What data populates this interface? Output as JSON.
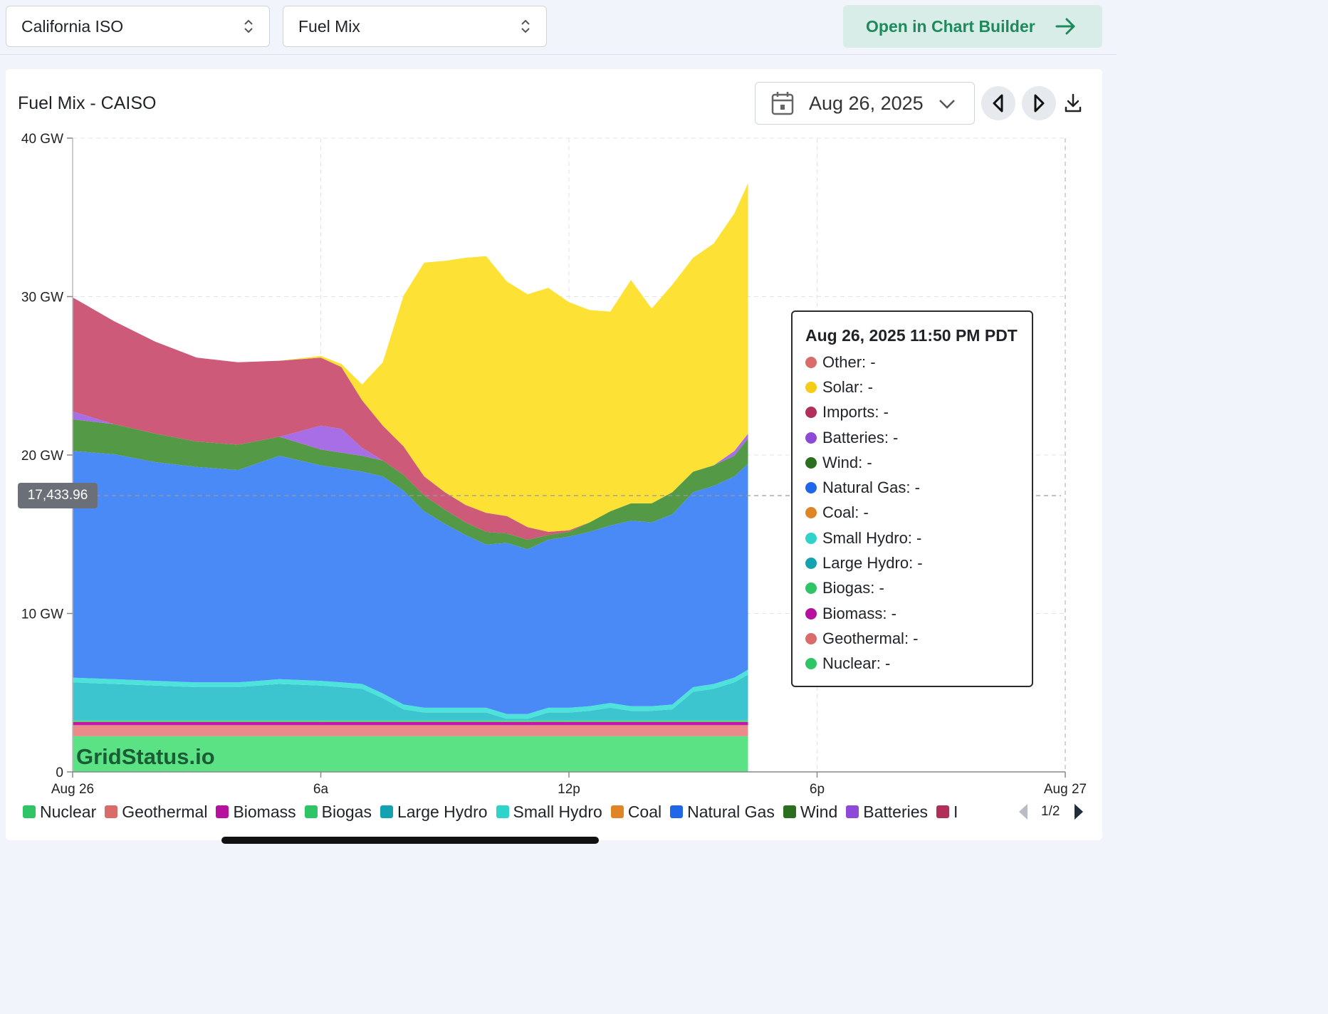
{
  "controls": {
    "iso_select": "California ISO",
    "dataset_select": "Fuel Mix",
    "open_builder_label": "Open in Chart Builder"
  },
  "panel": {
    "title": "Fuel Mix - CAISO",
    "date": "Aug 26, 2025",
    "watermark": "GridStatus.io",
    "hover_value": "17,433.96"
  },
  "tooltip": {
    "title": "Aug 26, 2025 11:50 PM PDT",
    "rows": [
      {
        "label": "Other: -",
        "color": "#d96b6b"
      },
      {
        "label": "Solar: -",
        "color": "#f5cc1a"
      },
      {
        "label": "Imports: -",
        "color": "#b0305a"
      },
      {
        "label": "Batteries: -",
        "color": "#8e4ad6"
      },
      {
        "label": "Wind: -",
        "color": "#2a6e1e"
      },
      {
        "label": "Natural Gas: -",
        "color": "#1f67e8"
      },
      {
        "label": "Coal: -",
        "color": "#df8525"
      },
      {
        "label": "Small Hydro: -",
        "color": "#2fd3c9"
      },
      {
        "label": "Large Hydro: -",
        "color": "#14a2b0"
      },
      {
        "label": "Biogas: -",
        "color": "#2fc566"
      },
      {
        "label": "Biomass: -",
        "color": "#b5119e"
      },
      {
        "label": "Geothermal: -",
        "color": "#d96b6b"
      },
      {
        "label": "Nuclear: -",
        "color": "#2fc566"
      }
    ]
  },
  "legend": {
    "items": [
      {
        "label": "Nuclear",
        "color": "#2fc566"
      },
      {
        "label": "Geothermal",
        "color": "#d96b6b"
      },
      {
        "label": "Biomass",
        "color": "#b5119e"
      },
      {
        "label": "Biogas",
        "color": "#2fc566"
      },
      {
        "label": "Large Hydro",
        "color": "#14a2b0"
      },
      {
        "label": "Small Hydro",
        "color": "#2fd3c9"
      },
      {
        "label": "Coal",
        "color": "#df8525"
      },
      {
        "label": "Natural Gas",
        "color": "#1f67e8"
      },
      {
        "label": "Wind",
        "color": "#2a6e1e"
      },
      {
        "label": "Batteries",
        "color": "#8e4ad6"
      },
      {
        "label": "I",
        "color": "#b0305a"
      }
    ],
    "page": "1/2"
  },
  "chart_data": {
    "type": "area",
    "stacked": true,
    "xlim": [
      0,
      24
    ],
    "ylim": [
      0,
      40
    ],
    "y_unit": "GW",
    "y_ticks": [
      "0",
      "10 GW",
      "20 GW",
      "30 GW",
      "40 GW"
    ],
    "y_tick_values": [
      0,
      10,
      20,
      30,
      40
    ],
    "x_ticks": [
      "Aug 26",
      "6a",
      "12p",
      "6p",
      "Aug 27"
    ],
    "x_tick_values": [
      0,
      6,
      12,
      18,
      24
    ],
    "grid": true,
    "x_hours": [
      0,
      1,
      2,
      3,
      4,
      5,
      6,
      6.5,
      7,
      7.5,
      8,
      8.5,
      9,
      9.5,
      10,
      10.5,
      11,
      11.5,
      12,
      12.5,
      13,
      13.5,
      14,
      14.5,
      15,
      15.5,
      16,
      16.33
    ],
    "series": [
      {
        "name": "Nuclear",
        "color": "#5be285",
        "values": [
          2.25,
          2.25,
          2.25,
          2.25,
          2.25,
          2.25,
          2.25,
          2.25,
          2.25,
          2.25,
          2.25,
          2.25,
          2.25,
          2.25,
          2.25,
          2.25,
          2.25,
          2.25,
          2.25,
          2.25,
          2.25,
          2.25,
          2.25,
          2.25,
          2.25,
          2.25,
          2.25,
          2.25
        ]
      },
      {
        "name": "Geothermal",
        "color": "#ea8a8a",
        "values": [
          0.7,
          0.7,
          0.7,
          0.7,
          0.7,
          0.7,
          0.7,
          0.7,
          0.7,
          0.7,
          0.7,
          0.7,
          0.7,
          0.7,
          0.7,
          0.7,
          0.7,
          0.7,
          0.7,
          0.7,
          0.7,
          0.7,
          0.7,
          0.7,
          0.7,
          0.7,
          0.7,
          0.7
        ]
      },
      {
        "name": "Biomass",
        "color": "#c21aa8",
        "values": [
          0.2,
          0.2,
          0.2,
          0.2,
          0.2,
          0.2,
          0.2,
          0.2,
          0.2,
          0.2,
          0.2,
          0.2,
          0.2,
          0.2,
          0.2,
          0.2,
          0.2,
          0.2,
          0.2,
          0.2,
          0.2,
          0.2,
          0.2,
          0.2,
          0.2,
          0.2,
          0.2,
          0.2
        ]
      },
      {
        "name": "Biogas",
        "color": "#54d37a",
        "values": [
          0.1,
          0.1,
          0.1,
          0.1,
          0.1,
          0.1,
          0.1,
          0.1,
          0.1,
          0.1,
          0.1,
          0.1,
          0.1,
          0.1,
          0.1,
          0.1,
          0.1,
          0.1,
          0.1,
          0.1,
          0.1,
          0.1,
          0.1,
          0.1,
          0.1,
          0.1,
          0.1,
          0.1
        ]
      },
      {
        "name": "Large Hydro",
        "color": "#3cc4cf",
        "values": [
          2.4,
          2.3,
          2.2,
          2.1,
          2.1,
          2.3,
          2.2,
          2.1,
          2.0,
          1.4,
          0.7,
          0.5,
          0.5,
          0.5,
          0.5,
          0.1,
          0.1,
          0.5,
          0.5,
          0.6,
          0.8,
          0.6,
          0.6,
          0.7,
          1.8,
          2.0,
          2.4,
          2.9
        ]
      },
      {
        "name": "Small Hydro",
        "color": "#4ee3da",
        "values": [
          0.3,
          0.3,
          0.3,
          0.3,
          0.3,
          0.3,
          0.3,
          0.3,
          0.3,
          0.3,
          0.3,
          0.3,
          0.3,
          0.3,
          0.3,
          0.3,
          0.3,
          0.3,
          0.3,
          0.3,
          0.3,
          0.3,
          0.3,
          0.3,
          0.3,
          0.3,
          0.3,
          0.3
        ]
      },
      {
        "name": "Natural Gas",
        "color": "#4a8af7",
        "values": [
          14.3,
          14.2,
          13.8,
          13.6,
          13.4,
          14.1,
          13.6,
          13.5,
          13.4,
          13.7,
          13.5,
          12.4,
          11.6,
          10.9,
          10.3,
          10.8,
          10.4,
          10.6,
          10.8,
          11.0,
          11.2,
          11.7,
          11.6,
          12.0,
          12.3,
          12.5,
          12.7,
          13.0
        ]
      },
      {
        "name": "Wind",
        "color": "#549a46",
        "values": [
          2.0,
          1.9,
          1.8,
          1.6,
          1.6,
          1.2,
          1.0,
          1.0,
          1.0,
          1.0,
          1.0,
          1.0,
          0.9,
          0.8,
          0.8,
          0.6,
          0.6,
          0.3,
          0.3,
          0.6,
          0.9,
          1.1,
          1.2,
          1.4,
          1.3,
          1.3,
          1.3,
          1.6
        ]
      },
      {
        "name": "Batteries",
        "color": "#a86ee6",
        "values": [
          0.5,
          0.0,
          0.0,
          0.0,
          0.0,
          0.0,
          1.5,
          1.5,
          0.5,
          0.0,
          0.0,
          0.0,
          0.0,
          0.0,
          0.0,
          0.0,
          0.0,
          0.0,
          0.0,
          0.0,
          0.0,
          0.0,
          0.0,
          0.0,
          0.0,
          0.0,
          0.3,
          0.3
        ]
      },
      {
        "name": "Imports",
        "color": "#cd5a78",
        "values": [
          7.2,
          6.5,
          5.8,
          5.3,
          5.2,
          4.8,
          4.3,
          3.9,
          3.0,
          2.2,
          1.8,
          1.2,
          1.1,
          1.1,
          1.2,
          1.1,
          0.8,
          0.2,
          0.1,
          0.0,
          0.0,
          0.0,
          0.0,
          0.0,
          0.0,
          0.0,
          0.0,
          0.0
        ]
      },
      {
        "name": "Solar",
        "color": "#fde135",
        "values": [
          0.0,
          0.0,
          0.0,
          0.0,
          0.0,
          0.0,
          0.1,
          0.2,
          1.0,
          4.0,
          9.5,
          13.5,
          14.6,
          15.6,
          16.2,
          14.8,
          14.7,
          15.4,
          14.4,
          13.4,
          12.6,
          14.1,
          12.3,
          13.1,
          13.5,
          14.0,
          15.0,
          15.8
        ]
      }
    ]
  }
}
